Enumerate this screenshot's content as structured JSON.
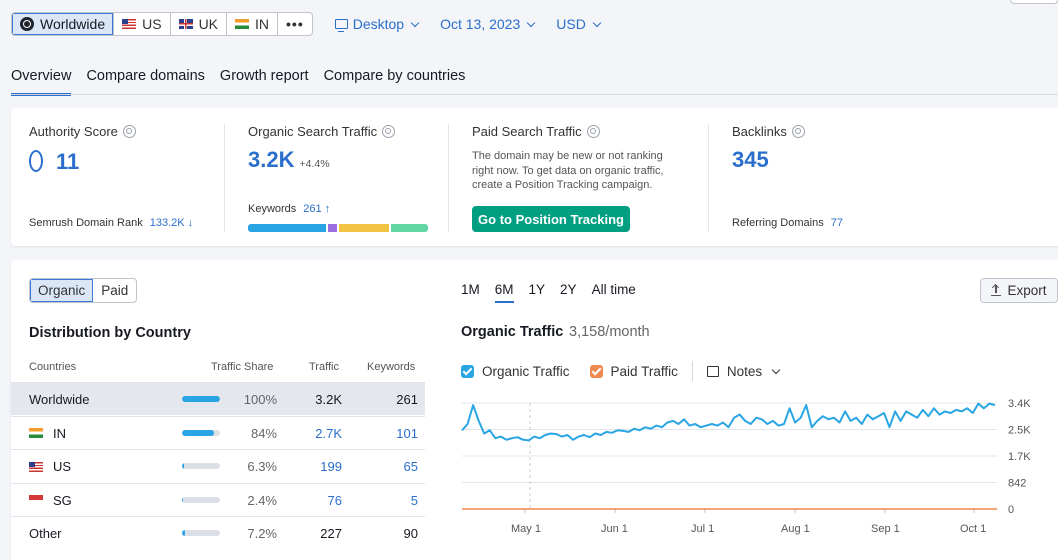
{
  "topbar": {
    "regions": [
      "Worldwide",
      "US",
      "UK",
      "IN"
    ],
    "more_label": "•••",
    "device": "Desktop",
    "date": "Oct 13, 2023",
    "currency": "USD"
  },
  "tabs": [
    "Overview",
    "Compare domains",
    "Growth report",
    "Compare by countries"
  ],
  "metrics": {
    "authority": {
      "label": "Authority Score",
      "value": "11",
      "sub_label": "Semrush Domain Rank",
      "sub_value": "133.2K ↓"
    },
    "organic": {
      "label": "Organic Search Traffic",
      "value": "3.2K",
      "delta": "+4.4%",
      "sub_label": "Keywords",
      "sub_value": "261 ↑"
    },
    "paid": {
      "label": "Paid Search Traffic",
      "desc": "The domain may be new or not ranking right now. To get data on organic traffic, create a Position Tracking campaign.",
      "button": "Go to Position Tracking"
    },
    "backlinks": {
      "label": "Backlinks",
      "value": "345",
      "sub_label": "Referring Domains",
      "sub_value": "77"
    }
  },
  "keyword_bar": [
    {
      "share": 0.45,
      "color": "#2aa5e4"
    },
    {
      "share": 0.05,
      "color": "#9b6fe0"
    },
    {
      "share": 0.29,
      "color": "#f2c443"
    },
    {
      "share": 0.21,
      "color": "#5fd6a4"
    }
  ],
  "distribution": {
    "toggle": [
      "Organic",
      "Paid"
    ],
    "title": "Distribution by Country",
    "headers": {
      "country": "Countries",
      "share": "Traffic Share",
      "traffic": "Traffic",
      "keywords": "Keywords"
    },
    "rows": [
      {
        "country": "Worldwide",
        "flag": "",
        "share": "100%",
        "share_value": 1.0,
        "traffic": "3.2K",
        "keywords": "261",
        "highlight": true,
        "linked": false
      },
      {
        "country": "IN",
        "flag": "flag-in",
        "share": "84%",
        "share_value": 0.84,
        "traffic": "2.7K",
        "keywords": "101",
        "highlight": false,
        "linked": true
      },
      {
        "country": "US",
        "flag": "flag-us",
        "share": "6.3%",
        "share_value": 0.063,
        "traffic": "199",
        "keywords": "65",
        "highlight": false,
        "linked": true
      },
      {
        "country": "SG",
        "flag": "flag-sg",
        "share": "2.4%",
        "share_value": 0.024,
        "traffic": "76",
        "keywords": "5",
        "highlight": false,
        "linked": true
      },
      {
        "country": "Other",
        "flag": "",
        "share": "7.2%",
        "share_value": 0.072,
        "traffic": "227",
        "keywords": "90",
        "highlight": false,
        "linked": false
      }
    ]
  },
  "chart_panel": {
    "periods": [
      "1M",
      "6M",
      "1Y",
      "2Y",
      "All time"
    ],
    "active_period": "6M",
    "export": "Export",
    "title": "Organic Traffic",
    "value": "3,158/month",
    "legend": [
      {
        "name": "Organic Traffic",
        "color": "#2aa5e4"
      },
      {
        "name": "Paid Traffic",
        "color": "#f0894f"
      }
    ],
    "notes": "Notes"
  },
  "chart_data": {
    "type": "line",
    "x_labels": [
      "May 1",
      "Jun 1",
      "Jul 1",
      "Aug 1",
      "Sep 1",
      "Oct 1"
    ],
    "y_ticks": [
      "3.4K",
      "2.5K",
      "1.7K",
      "842",
      "0"
    ],
    "ylim": [
      0,
      3368
    ],
    "grid": true,
    "series": [
      {
        "name": "Organic Traffic",
        "color": "#2aa5e4",
        "values": [
          2500,
          2700,
          3300,
          2800,
          2400,
          2500,
          2250,
          2300,
          2200,
          2250,
          2280,
          2200,
          2180,
          2300,
          2250,
          2350,
          2400,
          2380,
          2300,
          2350,
          2200,
          2300,
          2350,
          2280,
          2400,
          2350,
          2450,
          2420,
          2500,
          2480,
          2450,
          2550,
          2500,
          2600,
          2550,
          2650,
          2600,
          2750,
          2800,
          2700,
          2850,
          2650,
          2700,
          2600,
          2650,
          2700,
          2650,
          2750,
          2600,
          2900,
          3000,
          2800,
          2700,
          2900,
          2850,
          2700,
          2800,
          2650,
          2700,
          3200,
          2750,
          2900,
          3300,
          2600,
          2800,
          2950,
          2850,
          2900,
          2750,
          3100,
          2800,
          2900,
          2700,
          3000,
          2850,
          2950,
          3050,
          2600,
          3100,
          2800,
          3100,
          3000,
          2900,
          3150,
          2950,
          3200,
          3000,
          3100,
          3050,
          3150,
          3100,
          3200,
          3050,
          3350,
          3200,
          3350,
          3300
        ]
      },
      {
        "name": "Paid Traffic",
        "color": "#f0894f",
        "values": [
          0,
          0,
          0,
          0,
          0,
          0
        ]
      }
    ]
  }
}
